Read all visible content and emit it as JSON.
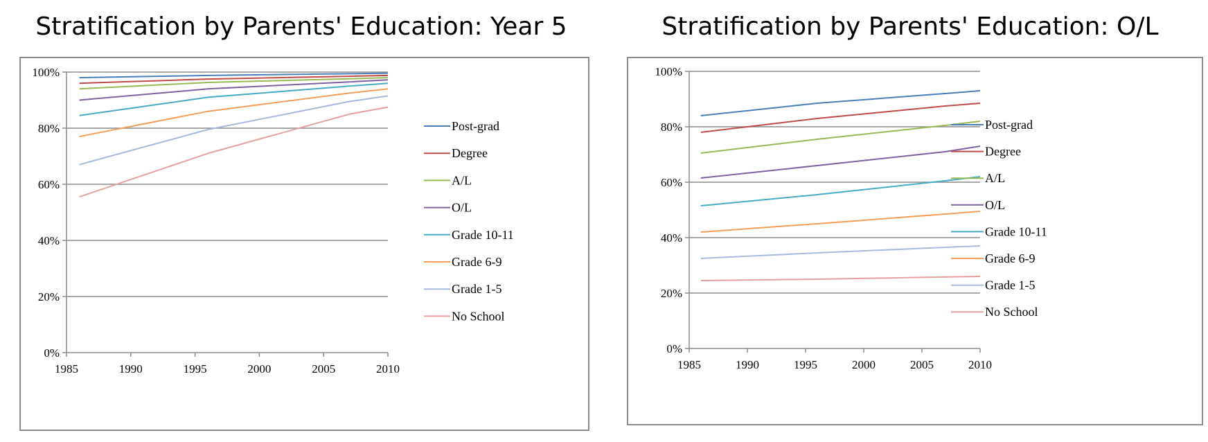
{
  "chart_data": [
    {
      "type": "line",
      "title": "Stratification by Parents' Education: Year 5",
      "xlabel": "",
      "ylabel": "",
      "xlim": [
        1985,
        2010
      ],
      "ylim": [
        0,
        100
      ],
      "x_ticks": [
        "1985",
        "1990",
        "1995",
        "2000",
        "2005",
        "2010"
      ],
      "y_ticks": [
        "0%",
        "20%",
        "40%",
        "60%",
        "80%",
        "100%"
      ],
      "grid": "horizontal",
      "legend_position": "right",
      "x": [
        1986,
        1996,
        2007,
        2010
      ],
      "series": [
        {
          "name": "Post-grad",
          "color": "#4a7ebb",
          "values": [
            98.0,
            98.8,
            99.4,
            99.6
          ]
        },
        {
          "name": "Degree",
          "color": "#be4b48",
          "values": [
            96.0,
            97.5,
            98.5,
            98.8
          ]
        },
        {
          "name": "A/L",
          "color": "#98b954",
          "values": [
            94.0,
            96.3,
            97.6,
            98.0
          ]
        },
        {
          "name": "O/L",
          "color": "#7d60a0",
          "values": [
            90.0,
            94.0,
            96.5,
            97.2
          ]
        },
        {
          "name": "Grade 10-11",
          "color": "#46aac4",
          "values": [
            84.5,
            91.0,
            95.0,
            96.0
          ]
        },
        {
          "name": "Grade 6-9",
          "color": "#f59d56",
          "values": [
            77.0,
            86.0,
            92.5,
            94.0
          ]
        },
        {
          "name": "Grade 1-5",
          "color": "#a5b9dc",
          "values": [
            67.0,
            79.5,
            89.5,
            91.5
          ]
        },
        {
          "name": "No School",
          "color": "#e6a0a0",
          "values": [
            55.5,
            71.0,
            85.0,
            87.5
          ]
        }
      ]
    },
    {
      "type": "line",
      "title": "Stratification by Parents' Education: O/L",
      "xlabel": "",
      "ylabel": "",
      "xlim": [
        1985,
        2010
      ],
      "ylim": [
        0,
        100
      ],
      "x_ticks": [
        "1985",
        "1990",
        "1995",
        "2000",
        "2005",
        "2010"
      ],
      "y_ticks": [
        "0%",
        "20%",
        "40%",
        "60%",
        "80%",
        "100%"
      ],
      "grid": "horizontal",
      "legend_position": "right",
      "x": [
        1986,
        1996,
        2007,
        2010
      ],
      "series": [
        {
          "name": "Post-grad",
          "color": "#4a7ebb",
          "values": [
            84.0,
            88.5,
            92.0,
            93.0
          ]
        },
        {
          "name": "Degree",
          "color": "#be4b48",
          "values": [
            78.0,
            83.0,
            87.5,
            88.5
          ]
        },
        {
          "name": "A/L",
          "color": "#98b954",
          "values": [
            70.5,
            75.5,
            80.5,
            82.0
          ]
        },
        {
          "name": "O/L",
          "color": "#7d60a0",
          "values": [
            61.5,
            66.0,
            71.0,
            73.0
          ]
        },
        {
          "name": "Grade 10-11",
          "color": "#46aac4",
          "values": [
            51.5,
            55.5,
            60.5,
            62.0
          ]
        },
        {
          "name": "Grade 6-9",
          "color": "#f59d56",
          "values": [
            42.0,
            45.0,
            48.5,
            49.5
          ]
        },
        {
          "name": "Grade 1-5",
          "color": "#a5b9dc",
          "values": [
            32.5,
            34.5,
            36.5,
            37.0
          ]
        },
        {
          "name": "No School",
          "color": "#e6a0a0",
          "values": [
            24.5,
            25.0,
            25.8,
            26.0
          ]
        }
      ]
    }
  ]
}
